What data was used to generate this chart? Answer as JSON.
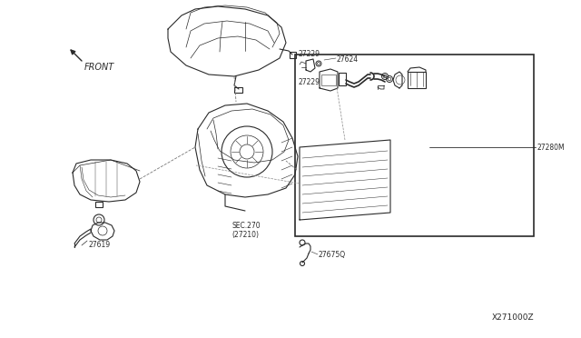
{
  "bg_color": "#ffffff",
  "lc": "#2a2a2a",
  "lc_light": "#555555",
  "fig_width": 6.4,
  "fig_height": 3.72,
  "dpi": 100,
  "labels": {
    "front": "FRONT",
    "p27624": "27624",
    "p27229a": "27229",
    "p27229b": "27229",
    "p27280M": "27280M",
    "p27675Q": "27675Q",
    "p27619": "27619",
    "sec": "SEC.270\n(27210)",
    "diagram_id": "X271000Z"
  },
  "fs": {
    "label": 5.5,
    "id": 6.5,
    "sec": 5.5,
    "front": 7.0
  }
}
